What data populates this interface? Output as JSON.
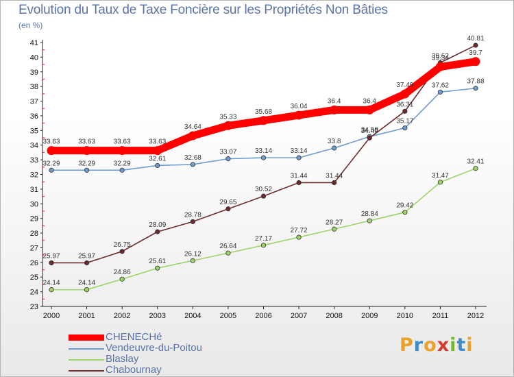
{
  "header": {
    "title": "Evolution du Taux de Taxe Foncière sur les Propriétés Non Bâties",
    "unit": "(en %)"
  },
  "brand": {
    "text": "Proxiti",
    "colors": [
      "#e8a12a",
      "#3f8ccc",
      "#e8a12a",
      "#d53b2a",
      "#74b62e",
      "#3f8ccc",
      "#e8a12a"
    ]
  },
  "chart_data": {
    "type": "line",
    "title": "Evolution du Taux de Taxe Foncière sur les Propriétés Non Bâties",
    "ylabel": "(en %)",
    "xlabel": "",
    "x": [
      "2000",
      "2001",
      "2002",
      "2003",
      "2004",
      "2005",
      "2006",
      "2007",
      "2008",
      "2009",
      "2010",
      "2011",
      "2012"
    ],
    "ylim": [
      23,
      41
    ],
    "yticks": [
      23,
      24,
      25,
      26,
      27,
      28,
      29,
      30,
      31,
      32,
      33,
      34,
      35,
      36,
      37,
      38,
      39,
      40,
      41
    ],
    "grid": false,
    "legend_position": "bottom-left",
    "series": [
      {
        "name": "CHENECHé",
        "color": "#ff0000",
        "emphasis": true,
        "values": [
          33.63,
          33.63,
          33.63,
          33.63,
          34.64,
          35.33,
          35.68,
          36.04,
          36.4,
          36.4,
          37.49,
          39.34,
          39.7
        ]
      },
      {
        "name": "Vendeuvre-du-Poitou",
        "color": "#6f9ccf",
        "emphasis": false,
        "values": [
          32.29,
          32.29,
          32.29,
          32.61,
          32.68,
          33.07,
          33.14,
          33.14,
          33.8,
          34.58,
          35.17,
          37.62,
          37.88
        ]
      },
      {
        "name": "Blaslay",
        "color": "#9ed36a",
        "emphasis": false,
        "values": [
          24.14,
          24.14,
          24.86,
          25.61,
          26.12,
          26.64,
          27.17,
          27.72,
          28.27,
          28.84,
          29.42,
          31.47,
          32.41
        ]
      },
      {
        "name": "Chabournay",
        "color": "#6b2a2a",
        "emphasis": false,
        "values": [
          25.97,
          25.97,
          26.75,
          28.09,
          28.78,
          29.65,
          30.52,
          31.44,
          31.44,
          34.49,
          36.31,
          39.62,
          40.81
        ]
      }
    ]
  }
}
